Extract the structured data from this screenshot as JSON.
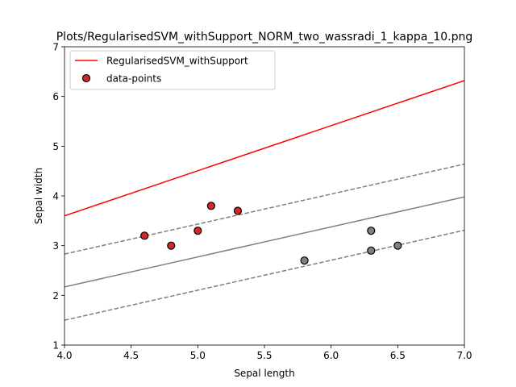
{
  "chart_data": {
    "type": "scatter",
    "title": "Plots/RegularisedSVM_withSupport_NORM_two_wassradi_1_kappa_10.png",
    "xlabel": "Sepal length",
    "ylabel": "Sepal width",
    "xlim": [
      4.0,
      7.0
    ],
    "ylim": [
      1,
      7
    ],
    "xticks": [
      "4.0",
      "4.5",
      "5.0",
      "5.5",
      "6.0",
      "6.5",
      "7.0"
    ],
    "yticks": [
      "1",
      "2",
      "3",
      "4",
      "5",
      "6",
      "7"
    ],
    "grid": false,
    "legend_placement": "top-left",
    "legend": [
      {
        "label": "RegularisedSVM_withSupport",
        "kind": "line",
        "color": "#ff0000"
      },
      {
        "label": "data-points",
        "kind": "marker",
        "color": "#d62728"
      }
    ],
    "lines": [
      {
        "role": "regularised-svm",
        "color": "#ff0000",
        "style": "solid",
        "x": [
          4.0,
          7.0
        ],
        "y": [
          3.6,
          6.32
        ]
      },
      {
        "role": "decision-boundary",
        "color": "#808080",
        "style": "solid",
        "x": [
          4.0,
          7.0
        ],
        "y": [
          2.17,
          3.98
        ]
      },
      {
        "role": "margin-upper",
        "color": "#808080",
        "style": "dashed",
        "x": [
          4.0,
          7.0
        ],
        "y": [
          2.83,
          4.64
        ]
      },
      {
        "role": "margin-lower",
        "color": "#808080",
        "style": "dashed",
        "x": [
          4.0,
          7.0
        ],
        "y": [
          1.5,
          3.31
        ]
      }
    ],
    "points": [
      {
        "x": 4.6,
        "y": 3.2,
        "color": "#d62728"
      },
      {
        "x": 4.8,
        "y": 3.0,
        "color": "#d62728"
      },
      {
        "x": 5.0,
        "y": 3.3,
        "color": "#d62728"
      },
      {
        "x": 5.1,
        "y": 3.8,
        "color": "#d62728"
      },
      {
        "x": 5.3,
        "y": 3.7,
        "color": "#d62728"
      },
      {
        "x": 5.8,
        "y": 2.7,
        "color": "#808080"
      },
      {
        "x": 6.3,
        "y": 3.3,
        "color": "#808080"
      },
      {
        "x": 6.3,
        "y": 2.9,
        "color": "#808080"
      },
      {
        "x": 6.5,
        "y": 3.0,
        "color": "#808080"
      }
    ]
  }
}
